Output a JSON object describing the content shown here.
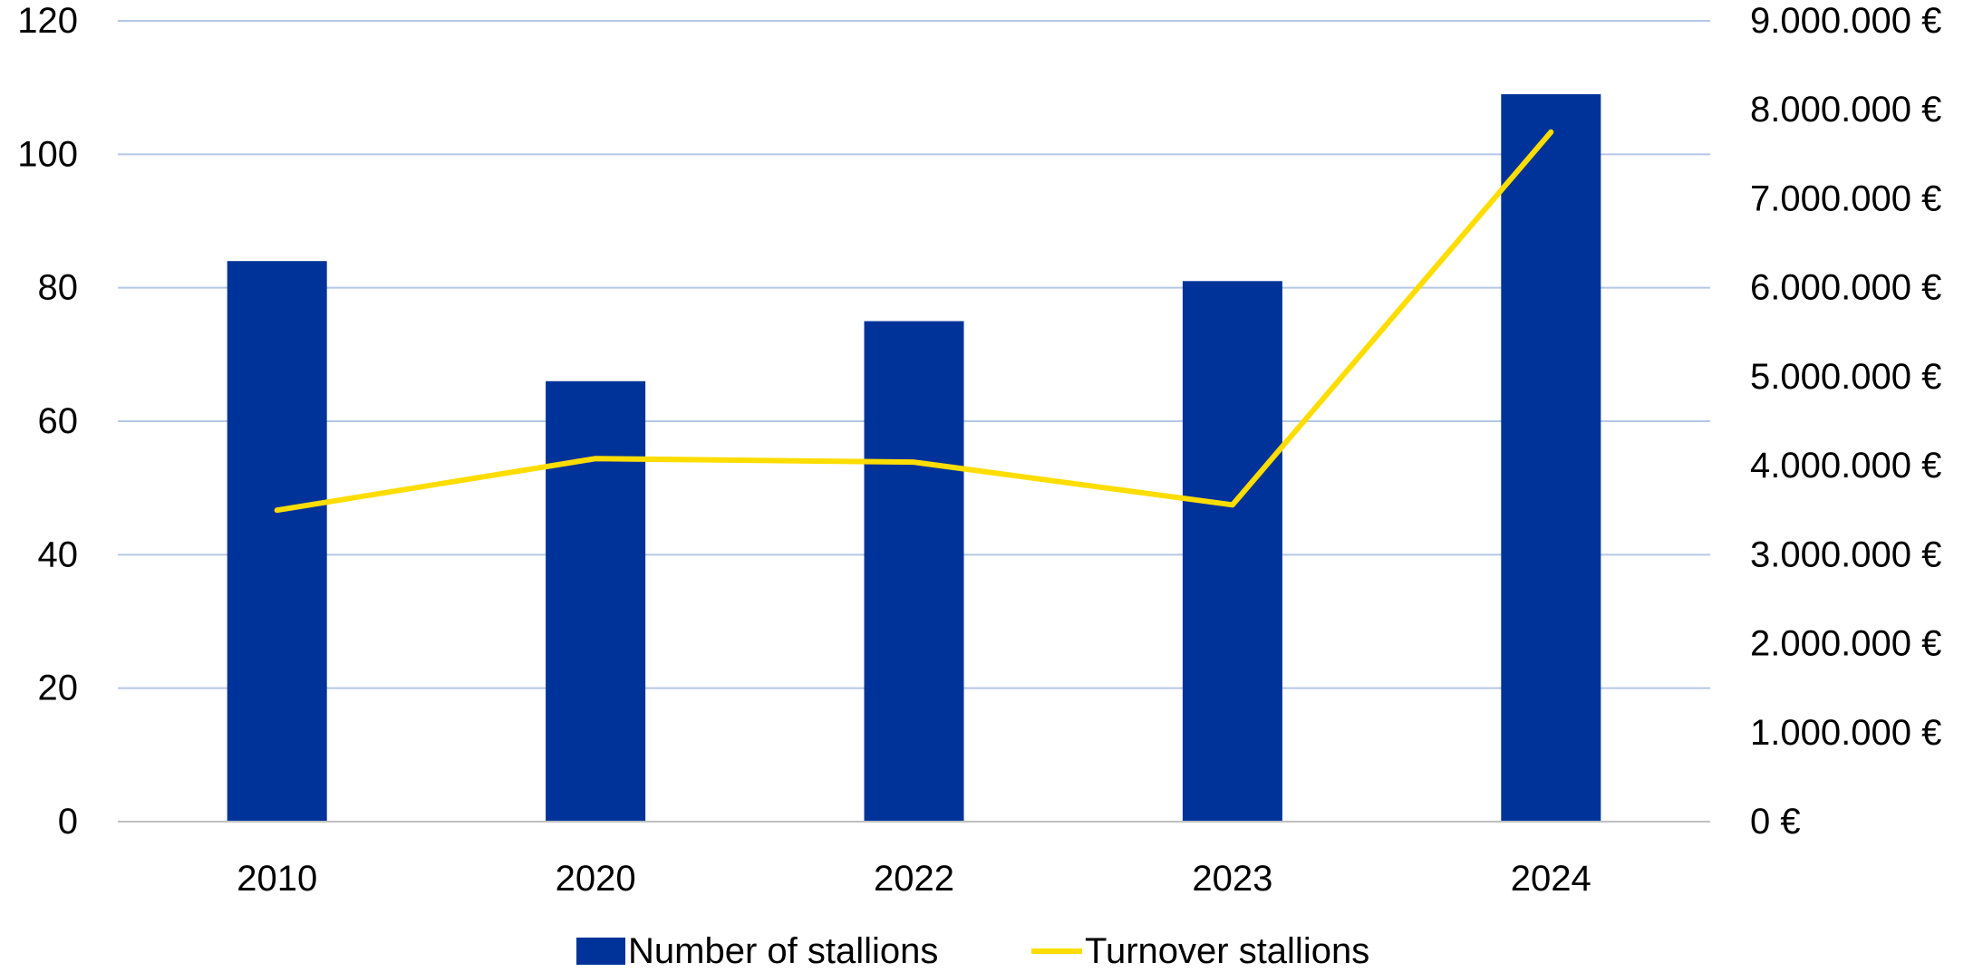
{
  "chart_data": {
    "type": "bar",
    "categories": [
      "2010",
      "2020",
      "2022",
      "2023",
      "2024"
    ],
    "series": [
      {
        "name": "Number of stallions",
        "type": "bar",
        "axis": "left",
        "color": "#003399",
        "values": [
          84,
          66,
          75,
          81,
          109
        ]
      },
      {
        "name": "Turnover stallions",
        "type": "line",
        "axis": "right",
        "color": "#FFDD00",
        "values": [
          3500000,
          4080000,
          4040000,
          3560000,
          7750000
        ]
      }
    ],
    "y_left": {
      "lim": [
        0,
        120
      ],
      "ticks": [
        0,
        20,
        40,
        60,
        80,
        100,
        120
      ],
      "tick_labels": [
        "0",
        "20",
        "40",
        "60",
        "80",
        "100",
        "120"
      ]
    },
    "y_right": {
      "lim": [
        0,
        9000000
      ],
      "ticks": [
        0,
        1000000,
        2000000,
        3000000,
        4000000,
        5000000,
        6000000,
        7000000,
        8000000,
        9000000
      ],
      "tick_labels": [
        "0 €",
        "1.000.000 €",
        "2.000.000 €",
        "3.000.000 €",
        "4.000.000 €",
        "5.000.000 €",
        "6.000.000 €",
        "7.000.000 €",
        "8.000.000 €",
        "9.000.000 €"
      ]
    },
    "title": "",
    "xlabel": "",
    "ylabel": "",
    "grid": true,
    "grid_color": "#B4C7E7",
    "legend_position": "bottom"
  }
}
